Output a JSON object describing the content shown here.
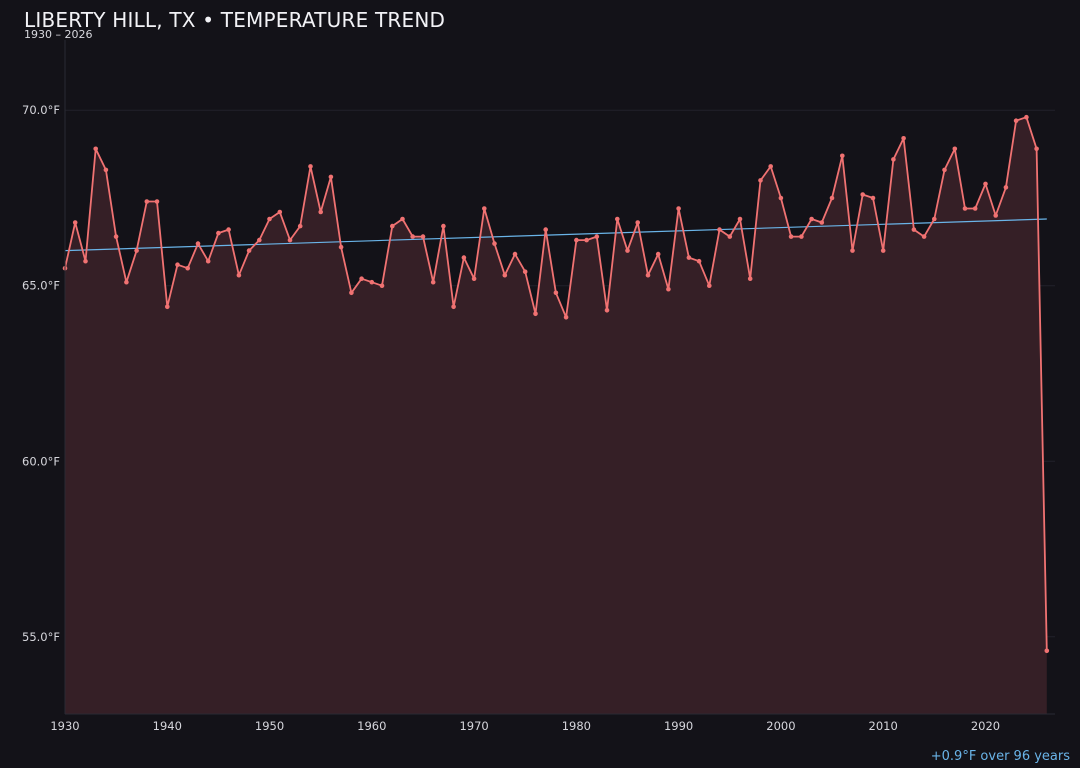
{
  "header": {
    "title": "LIBERTY HILL, TX • TEMPERATURE TREND",
    "subtitle": "1930 – 2026"
  },
  "footer": {
    "trend_note": "+0.9°F over 96 years"
  },
  "colors": {
    "background": "#131218",
    "series": "#f07272",
    "area": "#351f26",
    "trend": "#6ab4e8",
    "grid": "#22212a",
    "axis": "#2a2a33"
  },
  "chart_data": {
    "type": "line",
    "title": "LIBERTY HILL, TX • TEMPERATURE TREND",
    "subtitle": "1930 – 2026",
    "xlabel": "",
    "ylabel": "",
    "xlim": [
      1930,
      2026.8
    ],
    "ylim": [
      52.8,
      72.0
    ],
    "xticks": [
      1930,
      1940,
      1950,
      1960,
      1970,
      1980,
      1990,
      2000,
      2010,
      2020
    ],
    "yticks": [
      55.0,
      60.0,
      65.0,
      70.0
    ],
    "ytick_labels": [
      "55.0°F",
      "60.0°F",
      "65.0°F",
      "70.0°F"
    ],
    "grid": true,
    "area_fill": true,
    "series": [
      {
        "x": [
          1930,
          1931,
          1932,
          1933,
          1934,
          1935,
          1936,
          1937,
          1938,
          1939,
          1940,
          1941,
          1942,
          1943,
          1944,
          1945,
          1946,
          1947,
          1948,
          1949,
          1950,
          1951,
          1952,
          1953,
          1954,
          1955,
          1956,
          1957,
          1958,
          1959,
          1960,
          1961,
          1962,
          1963,
          1964,
          1965,
          1966,
          1967,
          1968,
          1969,
          1970,
          1971,
          1972,
          1973,
          1974,
          1975,
          1976,
          1977,
          1978,
          1979,
          1980,
          1981,
          1982,
          1983,
          1984,
          1985,
          1986,
          1987,
          1988,
          1989,
          1990,
          1991,
          1992,
          1993,
          1994,
          1995,
          1996,
          1997,
          1998,
          1999,
          2000,
          2001,
          2002,
          2003,
          2004,
          2005,
          2006,
          2007,
          2008,
          2009,
          2010,
          2011,
          2012,
          2013,
          2014,
          2015,
          2016,
          2017,
          2018,
          2019,
          2020,
          2021,
          2022,
          2023,
          2024,
          2025,
          2026
        ],
        "values": [
          65.5,
          66.8,
          65.7,
          68.9,
          68.3,
          66.4,
          65.1,
          66.0,
          67.4,
          67.4,
          64.4,
          65.6,
          65.5,
          66.2,
          65.7,
          66.5,
          66.6,
          65.3,
          66.0,
          66.3,
          66.9,
          67.1,
          66.3,
          66.7,
          68.4,
          67.1,
          68.1,
          66.1,
          64.8,
          65.2,
          65.1,
          65.0,
          66.7,
          66.9,
          66.4,
          66.4,
          65.1,
          66.7,
          64.4,
          65.8,
          65.2,
          67.2,
          66.2,
          65.3,
          65.9,
          65.4,
          64.2,
          66.6,
          64.8,
          64.1,
          66.3,
          66.3,
          66.4,
          64.3,
          66.9,
          66.0,
          66.8,
          65.3,
          65.9,
          64.9,
          67.2,
          65.8,
          65.7,
          65.0,
          66.6,
          66.4,
          66.9,
          65.2,
          68.0,
          68.4,
          67.5,
          66.4,
          66.4,
          66.9,
          66.8,
          67.5,
          68.7,
          66.0,
          67.6,
          67.5,
          66.0,
          68.6,
          69.2,
          66.6,
          66.4,
          66.9,
          68.3,
          68.9,
          67.2,
          67.2,
          67.9,
          67.0,
          67.8,
          69.7,
          69.8,
          68.9,
          54.6
        ]
      }
    ],
    "trendline": {
      "start": [
        1930,
        66.0
      ],
      "end": [
        2026,
        66.9
      ]
    }
  }
}
